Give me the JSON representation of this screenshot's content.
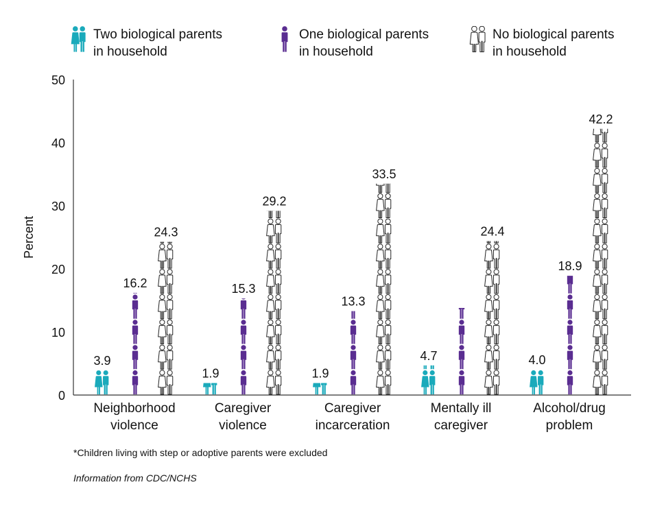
{
  "legend": [
    {
      "line1": "Two biological parents",
      "line2": "in household",
      "color": "#1aaabb",
      "icon": "couple-solid-icon"
    },
    {
      "line1": "One biological parents",
      "line2": "in household",
      "color": "#5a2d91",
      "icon": "single-person-icon"
    },
    {
      "line1": "No biological parents",
      "line2": "in household",
      "color": "#ffffff",
      "icon": "couple-outline-icon"
    }
  ],
  "chart_data": {
    "type": "bar",
    "ylabel": "Percent",
    "ylim": [
      0,
      50
    ],
    "yticks": [
      "0",
      "10",
      "20",
      "30",
      "40",
      "50"
    ],
    "categories": [
      [
        "Neighborhood",
        "violence"
      ],
      [
        "Caregiver",
        "violence"
      ],
      [
        "Caregiver",
        "incarceration"
      ],
      [
        "Mentally ill",
        "caregiver"
      ],
      [
        "Alcohol/drug",
        "problem"
      ]
    ],
    "series": [
      {
        "name": "Two biological parents in household",
        "color": "#1aaabb",
        "values": [
          3.9,
          1.9,
          1.9,
          4.7,
          4.0
        ],
        "labels": [
          "3.9",
          "1.9",
          "1.9",
          "4.7",
          "4.0"
        ]
      },
      {
        "name": "One biological parents in household",
        "color": "#5a2d91",
        "values": [
          16.2,
          15.3,
          13.3,
          13.8,
          18.9
        ],
        "labels": [
          "16.2",
          "15.3",
          "13.3",
          "",
          "18.9"
        ]
      },
      {
        "name": "No biological parents in household",
        "color": "#ffffff",
        "values": [
          24.3,
          29.2,
          33.5,
          24.4,
          42.2
        ],
        "labels": [
          "24.3",
          "29.2",
          "33.5",
          "24.4",
          "42.2"
        ]
      }
    ]
  },
  "footnote": "*Children living with step or adoptive parents were excluded",
  "source": "Information from CDC/NCHS"
}
